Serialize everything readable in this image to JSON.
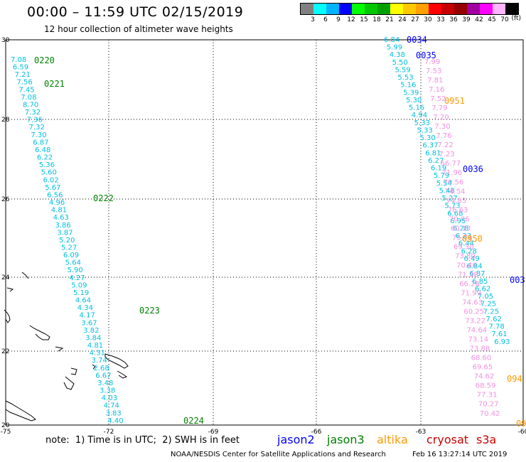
{
  "title": "00:00 – 11:59 UTC 02/15/2019",
  "subtitle": "12 hour collection of altimeter wave heights",
  "legend": {
    "colors": [
      "#808080",
      "#00ffff",
      "#00b4ff",
      "#0000ff",
      "#00ff00",
      "#00c800",
      "#00a000",
      "#ffff00",
      "#ffc800",
      "#ffa000",
      "#ff0000",
      "#c80000",
      "#960000",
      "#a000a0",
      "#ff00ff",
      "#ffb4ff",
      "#000000"
    ],
    "labels": [
      "3",
      "6",
      "9",
      "12",
      "15",
      "18",
      "21",
      "24",
      "27",
      "30",
      "33",
      "36",
      "39",
      "42",
      "45",
      "70"
    ],
    "unit": "(ft)"
  },
  "axes": {
    "lon_ticks": [
      "-75",
      "-72",
      "-69",
      "-66",
      "-63",
      "-60"
    ],
    "lat_ticks": [
      "30",
      "28",
      "26",
      "24",
      "22",
      "20"
    ]
  },
  "tracks": [
    {
      "color": "#00c0e0",
      "values": [
        "7.08",
        "6.59",
        "7.21",
        "7.56",
        "7.45",
        "7.08",
        "8.70",
        "7.32",
        "7.36",
        "7.32",
        "7.30",
        "6.87",
        "6.48",
        "6.22",
        "5.36",
        "5.60",
        "6.02",
        "5.67",
        "6.56",
        "4.96",
        "4.81",
        "4.63",
        "3.86",
        "3.87",
        "5.20",
        "5.27",
        "6.09",
        "5.64",
        "5.90",
        "4.27",
        "5.09",
        "5.19",
        "4.64",
        "4.34",
        "4.17",
        "3.67",
        "3.82",
        "3.84",
        "4.81",
        "4.31",
        "3.74",
        "2.68",
        "6.67",
        "3.48",
        "3.38",
        "4.03",
        "4.74",
        "3.83",
        "4.40"
      ]
    },
    {
      "color": "#00c0e0",
      "values": [
        "6.84",
        "5.99",
        "4.38",
        "5.50",
        "5.59",
        "5.53",
        "5.16",
        "5.39",
        "5.30",
        "5.16",
        "4.94",
        "5.33",
        "5.33",
        "5.30",
        "6.37",
        "6.81",
        "6.27",
        "6.19",
        "5.79",
        "5.54",
        "5.48",
        "5.27",
        "5.73",
        "6.68",
        "6.95",
        "6.28",
        "6.23",
        "6.44",
        "6.28",
        "6.49",
        "6.84",
        "6.87",
        "6.85",
        "6.62",
        "7.05",
        "7.25",
        "7.25",
        "7.62",
        "7.78",
        "7.61",
        "6.93"
      ]
    },
    {
      "color": "#f090e0",
      "values": [
        "7.99",
        "7.53",
        "7.81",
        "7.16",
        "7.52",
        "7.79",
        "7.20",
        "7.30",
        "7.76",
        "7.22",
        "7.23",
        "66.77",
        "71.96",
        "70.56",
        "74.54",
        "74.85",
        "76.63",
        "70.86",
        "60.13",
        "75.71",
        "69.30",
        "73.80",
        "70.46",
        "71.38",
        "66.26",
        "71.99",
        "74.63",
        "60.25",
        "73.22",
        "74.64",
        "73.14",
        "73.88",
        "68.60",
        "69.65",
        "74.62",
        "68.59",
        "77.31",
        "70.27",
        "70.42"
      ]
    }
  ],
  "time_labels": [
    {
      "text": "0220",
      "color": "#008000"
    },
    {
      "text": "0221",
      "color": "#008000"
    },
    {
      "text": "0222",
      "color": "#008000"
    },
    {
      "text": "0223",
      "color": "#008000"
    },
    {
      "text": "0224",
      "color": "#008000"
    },
    {
      "text": "0034",
      "color": "#0000ff"
    },
    {
      "text": "0035",
      "color": "#0000ff"
    },
    {
      "text": "0951",
      "color": "#ff9900"
    },
    {
      "text": "0036",
      "color": "#0000ff"
    },
    {
      "text": "0950",
      "color": "#ff9900"
    },
    {
      "text": "003",
      "color": "#0000ff"
    },
    {
      "text": "094",
      "color": "#ff9900"
    },
    {
      "text": "09",
      "color": "#ff9900"
    }
  ],
  "note": "note:  1) Time is in UTC;  2) SWH is in feet",
  "satellites": [
    {
      "name": "jason2",
      "color": "#0000ff"
    },
    {
      "name": "jason3",
      "color": "#008000"
    },
    {
      "name": "altika",
      "color": "#ff9900"
    },
    {
      "name": "cryosat",
      "color": "#cc0000"
    },
    {
      "name": "s3a",
      "color": "#cc0000"
    }
  ],
  "credit": "NOAA/NESDIS Center for Satellite Applications and Research",
  "generated": "Feb 16 13:27:14 UTC 2019"
}
